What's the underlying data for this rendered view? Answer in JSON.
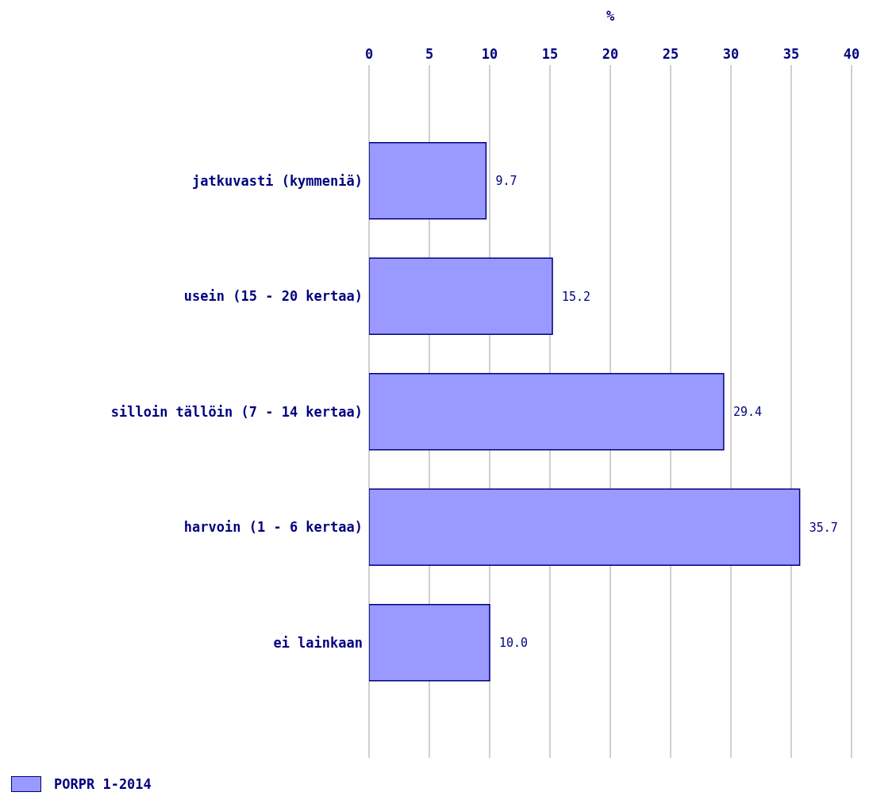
{
  "chart_data": {
    "type": "bar",
    "orientation": "horizontal",
    "xlabel": "%",
    "categories": [
      "jatkuvasti (kymmeniä)",
      "usein (15 - 20 kertaa)",
      "silloin tällöin (7 - 14 kertaa)",
      "harvoin (1 - 6 kertaa)",
      "ei lainkaan"
    ],
    "series": [
      {
        "name": "PORPR 1-2014",
        "color": "#9999ff",
        "values": [
          9.7,
          15.2,
          29.4,
          35.7,
          10.0
        ],
        "value_labels": [
          "9.7",
          "15.2",
          "29.4",
          "35.7",
          "10.0"
        ]
      }
    ],
    "xlim": [
      0,
      40
    ],
    "xticks": [
      0,
      5,
      10,
      15,
      20,
      25,
      30,
      35,
      40
    ],
    "grid": "x",
    "legend": "bottom left"
  }
}
